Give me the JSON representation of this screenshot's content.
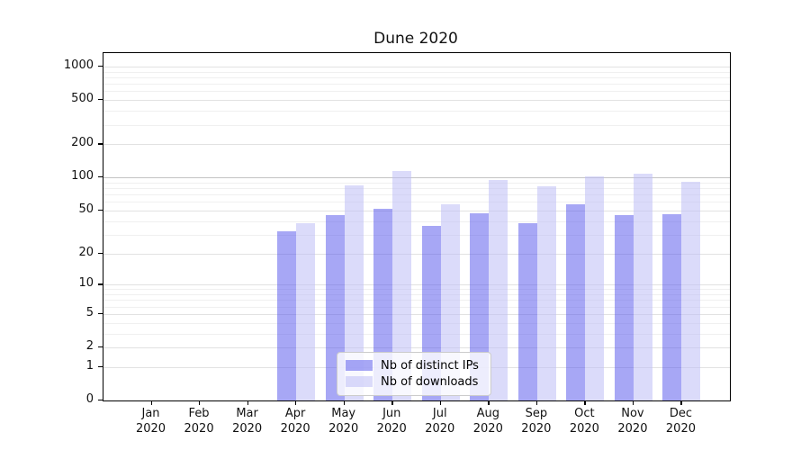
{
  "chart_data": {
    "type": "bar",
    "title": "Dune 2020",
    "categories": [
      "Jan 2020",
      "Feb 2020",
      "Mar 2020",
      "Apr 2020",
      "May 2020",
      "Jun 2020",
      "Jul 2020",
      "Aug 2020",
      "Sep 2020",
      "Oct 2020",
      "Nov 2020",
      "Dec 2020"
    ],
    "series": [
      {
        "name": "Nb of distinct IPs",
        "values": [
          0,
          0,
          0,
          32,
          45,
          52,
          36,
          47,
          38,
          57,
          45,
          46
        ],
        "color_hex": "#a7a7f5",
        "color_rgba": "rgba(80,80,235,0.5)"
      },
      {
        "name": "Nb of downloads",
        "values": [
          0,
          0,
          0,
          38,
          85,
          115,
          57,
          95,
          83,
          102,
          108,
          92
        ],
        "color_hex": "#dbdbfa",
        "color_rgba": "rgba(190,190,245,0.55)"
      }
    ],
    "yscale": "symlog-log1p",
    "yticks": [
      0,
      1,
      2,
      5,
      10,
      20,
      50,
      100,
      200,
      500,
      1000
    ],
    "emphasized_gridline": 100,
    "ylim": [
      0,
      1324
    ],
    "grid": "on",
    "legend_position": "lower center"
  },
  "legend": {
    "item1": "Nb of distinct IPs",
    "item2": "Nb of downloads"
  },
  "colors": {
    "axis": "#000000",
    "grid_major": "#e2e2e2",
    "grid_minor": "#f0f0f0",
    "grid_emphasized": "#c4c4c4",
    "background": "#ffffff",
    "text": "#111111"
  }
}
